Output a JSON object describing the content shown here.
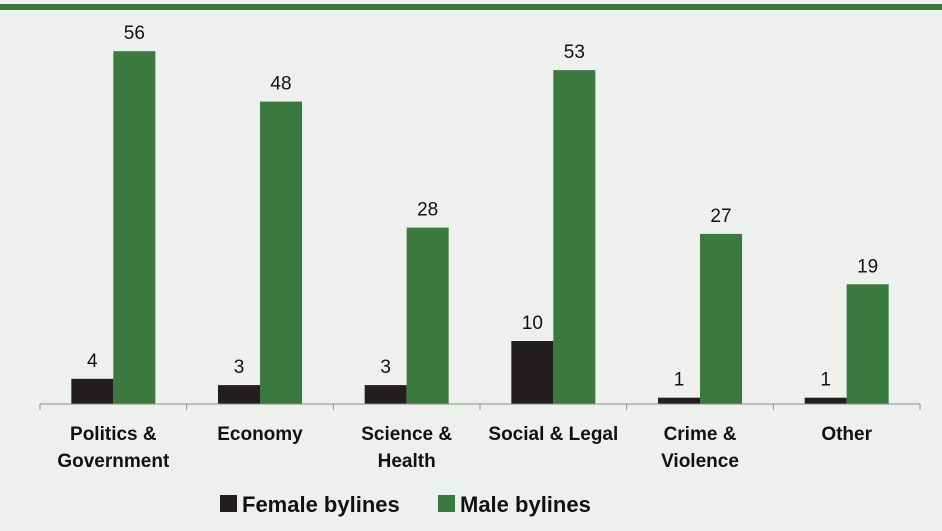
{
  "colors": {
    "background": "#eef0ee",
    "top_rule": "#3b7a3e",
    "female": "#231f20",
    "male": "#3b7a3e",
    "axis": "#8a8a8a"
  },
  "chart_data": {
    "type": "bar",
    "title": "",
    "xlabel": "",
    "ylabel": "",
    "ylim": [
      0,
      60
    ],
    "grid": false,
    "legend_position": "bottom",
    "categories": [
      [
        "Politics &",
        "Government"
      ],
      [
        "Economy"
      ],
      [
        "Science &",
        "Health"
      ],
      [
        "Social & Legal"
      ],
      [
        "Crime &",
        "Violence"
      ],
      [
        "Other"
      ]
    ],
    "series": [
      {
        "name": "Female bylines",
        "color": "#231f20",
        "values": [
          4,
          3,
          3,
          10,
          1,
          1
        ]
      },
      {
        "name": "Male bylines",
        "color": "#3b7a3e",
        "values": [
          56,
          48,
          28,
          53,
          27,
          19
        ]
      }
    ]
  }
}
